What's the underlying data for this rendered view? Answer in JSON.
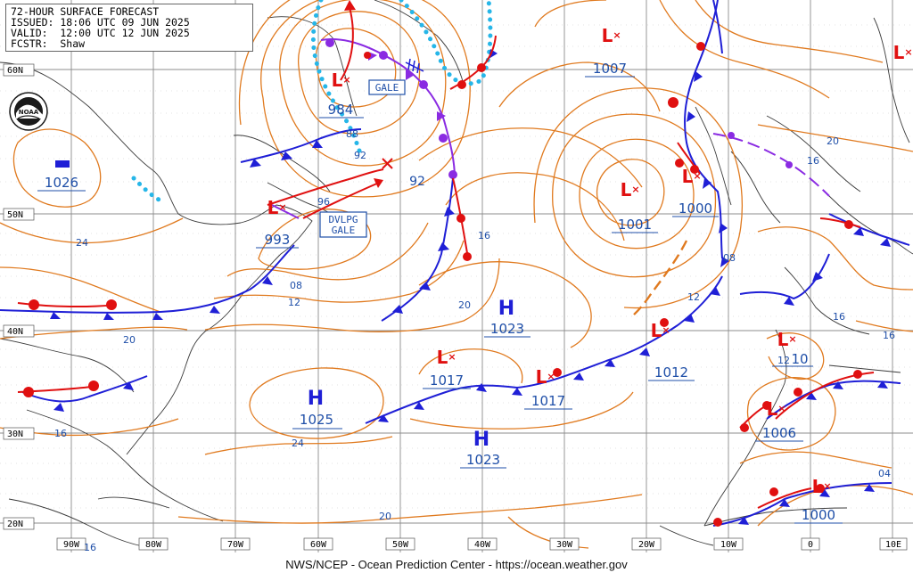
{
  "header": {
    "title": "72-HOUR SURFACE FORECAST",
    "issued": "ISSUED: 18:06 UTC 09 JUN 2025",
    "valid": "VALID:  12:00 UTC 12 JUN 2025",
    "forecaster": "FCSTR:  Shaw"
  },
  "footer": "NWS/NCEP - Ocean Prediction Center - https://ocean.weather.gov",
  "logo_text": "NOAA",
  "colors": {
    "isobar": "#e07a1f",
    "cold_front": "#1f1fd6",
    "warm_front": "#e01010",
    "occluded_front": "#8a2be2",
    "ice_edge": "#26b6e8",
    "label_blue": "#1f4fa8",
    "high_blue": "#1f1fd6",
    "low_red": "#e01010",
    "grid": "#9a9a9a",
    "coast": "#333333"
  },
  "lat_labels": [
    "60N",
    "50N",
    "40N",
    "30N",
    "20N"
  ],
  "lon_labels": [
    "90W",
    "80W",
    "70W",
    "60W",
    "50W",
    "40W",
    "30W",
    "20W",
    "10W",
    "0",
    "10E"
  ],
  "highs": [
    {
      "symbol": "H",
      "pressure": "1026"
    },
    {
      "symbol": "H",
      "pressure": "1023"
    },
    {
      "symbol": "H",
      "pressure": "1025"
    },
    {
      "symbol": "H",
      "pressure": "1023"
    }
  ],
  "lows": [
    {
      "symbol": "L",
      "pressure": "984"
    },
    {
      "symbol": "L",
      "pressure": "993"
    },
    {
      "symbol": "L",
      "pressure": "1007"
    },
    {
      "symbol": "L",
      "pressure": "1001"
    },
    {
      "symbol": "L",
      "pressure": "1000"
    },
    {
      "symbol": "L",
      "pressure": "1017"
    },
    {
      "symbol": "L",
      "pressure": "1012"
    },
    {
      "symbol": "L",
      "pressure": "1017"
    },
    {
      "symbol": "L",
      "pressure": "10"
    },
    {
      "symbol": "L",
      "pressure": "1006"
    },
    {
      "symbol": "L",
      "pressure": "1000"
    },
    {
      "symbol": "L",
      "pressure": ""
    }
  ],
  "warnings": [
    "GALE",
    "DVLPG\nGALE"
  ],
  "warning_gale": "GALE",
  "warning_dvlpg_1": "DVLPG",
  "warning_dvlpg_2": "GALE",
  "isobar_labels": [
    "88",
    "92",
    "96",
    "92",
    "08",
    "12",
    "16",
    "20",
    "24",
    "20",
    "16",
    "24",
    "20",
    "16",
    "12",
    "08",
    "16",
    "16",
    "20",
    "12",
    "04",
    "12",
    "16"
  ]
}
